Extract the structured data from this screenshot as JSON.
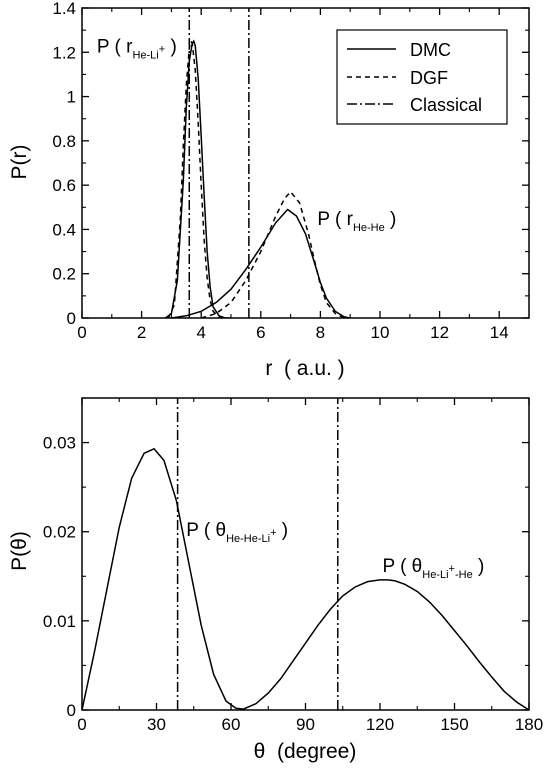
{
  "chart_data": [
    {
      "type": "line",
      "xlabel": "r  ( a.u. )",
      "ylabel": "P(r)",
      "xlim": [
        0,
        15
      ],
      "ylim": [
        0,
        1.4
      ],
      "xticks": [
        0,
        2,
        4,
        6,
        8,
        10,
        12,
        14
      ],
      "xtick_labels": [
        "0",
        "2",
        "4",
        "6",
        "8",
        "10",
        "12",
        "14"
      ],
      "yticks": [
        0,
        0.2,
        0.4,
        0.6,
        0.8,
        1.0,
        1.2,
        1.4
      ],
      "ytick_labels": [
        "0",
        "0.2",
        "0.4",
        "0.6",
        "0.8",
        "1",
        "1.2",
        "1.4"
      ],
      "legend_position": "top-right",
      "series": [
        {
          "name": "DMC",
          "style": "solid",
          "segments": [
            {
              "x": [
                2.8,
                3.0,
                3.2,
                3.4,
                3.5,
                3.6,
                3.7,
                3.75,
                3.8,
                3.9,
                4.0,
                4.1,
                4.2,
                4.3,
                4.4,
                4.6,
                4.8,
                5.0
              ],
              "y": [
                0.0,
                0.02,
                0.17,
                0.62,
                0.95,
                1.16,
                1.24,
                1.25,
                1.23,
                1.08,
                0.82,
                0.55,
                0.3,
                0.14,
                0.05,
                0.01,
                0.0,
                0.0
              ]
            },
            {
              "x": [
                3.0,
                3.5,
                4.0,
                4.5,
                5.0,
                5.5,
                6.0,
                6.5,
                6.9,
                7.2,
                7.5,
                7.8,
                8.0,
                8.2,
                8.5,
                8.8,
                9.0
              ],
              "y": [
                0.0,
                0.01,
                0.03,
                0.07,
                0.13,
                0.22,
                0.32,
                0.43,
                0.49,
                0.46,
                0.38,
                0.25,
                0.16,
                0.09,
                0.03,
                0.005,
                0.0
              ]
            }
          ]
        },
        {
          "name": "DGF",
          "style": "dashed",
          "segments": [
            {
              "x": [
                2.9,
                3.1,
                3.3,
                3.4,
                3.5,
                3.6,
                3.65,
                3.7,
                3.8,
                3.9,
                4.0,
                4.1,
                4.2,
                4.3,
                4.4,
                4.6,
                4.8
              ],
              "y": [
                0.0,
                0.06,
                0.45,
                0.78,
                1.05,
                1.22,
                1.25,
                1.24,
                1.12,
                0.88,
                0.6,
                0.35,
                0.18,
                0.08,
                0.03,
                0.005,
                0.0
              ]
            },
            {
              "x": [
                4.0,
                4.5,
                5.0,
                5.5,
                6.0,
                6.5,
                6.8,
                7.0,
                7.3,
                7.6,
                7.8,
                8.0,
                8.2,
                8.5,
                8.8
              ],
              "y": [
                0.0,
                0.02,
                0.07,
                0.17,
                0.3,
                0.46,
                0.54,
                0.57,
                0.52,
                0.38,
                0.26,
                0.15,
                0.07,
                0.02,
                0.0
              ]
            }
          ]
        },
        {
          "name": "Classical",
          "style": "dash-dot",
          "segments": [
            {
              "x": [
                3.6,
                3.6
              ],
              "y": [
                0,
                1.4
              ]
            },
            {
              "x": [
                5.6,
                5.6
              ],
              "y": [
                0,
                1.4
              ]
            }
          ]
        }
      ],
      "annotations": [
        {
          "text": "P ( r",
          "sub": "He-Li",
          "sup": "+",
          "close": ")",
          "x": 0.5,
          "y": 1.2
        },
        {
          "text": "P ( r",
          "sub": "He-He",
          "sup": "",
          "close": ")",
          "x": 7.9,
          "y": 0.42
        }
      ]
    },
    {
      "type": "line",
      "xlabel": "θ  (degree)",
      "ylabel": "P(θ)",
      "xlim": [
        0,
        180
      ],
      "ylim": [
        0,
        0.035
      ],
      "xticks": [
        0,
        30,
        60,
        90,
        120,
        150,
        180
      ],
      "xtick_labels": [
        "0",
        "30",
        "60",
        "90",
        "120",
        "150",
        "180"
      ],
      "yticks": [
        0,
        0.01,
        0.02,
        0.03
      ],
      "ytick_labels": [
        "0",
        "0.01",
        "0.02",
        "0.03"
      ],
      "series": [
        {
          "name": "",
          "style": "solid",
          "segments": [
            {
              "x": [
                0,
                5,
                10,
                15,
                20,
                25,
                29,
                33,
                38,
                43,
                48,
                53,
                58,
                62,
                65,
                70,
                75,
                80,
                85,
                90,
                95,
                100,
                105,
                110,
                115,
                120,
                123,
                126,
                130,
                135,
                140,
                145,
                150,
                155,
                160,
                165,
                170,
                175,
                180
              ],
              "y": [
                0.0,
                0.0065,
                0.0135,
                0.0205,
                0.026,
                0.0288,
                0.0293,
                0.028,
                0.0235,
                0.0165,
                0.0095,
                0.004,
                0.001,
                0.0002,
                0.0001,
                0.0007,
                0.0019,
                0.0035,
                0.0055,
                0.0075,
                0.0095,
                0.0113,
                0.0128,
                0.0138,
                0.0144,
                0.0146,
                0.0146,
                0.0145,
                0.0141,
                0.0133,
                0.0121,
                0.0106,
                0.0089,
                0.0072,
                0.0054,
                0.0037,
                0.0021,
                0.0009,
                0.0
              ]
            }
          ]
        },
        {
          "name": "",
          "style": "dash-dot",
          "segments": [
            {
              "x": [
                38.5,
                38.5
              ],
              "y": [
                0,
                0.035
              ]
            },
            {
              "x": [
                103,
                103
              ],
              "y": [
                0,
                0.035
              ]
            }
          ]
        }
      ],
      "annotations": [
        {
          "text": "P ( θ",
          "sub": "He-He-Li",
          "sup": "+",
          "close": ")",
          "x": 42,
          "y": 0.0195
        },
        {
          "text": "P ( θ",
          "sub": "He-Li",
          "sup": "+",
          "sub2": "-He",
          "close": ")",
          "x": 121,
          "y": 0.0155
        }
      ]
    }
  ]
}
